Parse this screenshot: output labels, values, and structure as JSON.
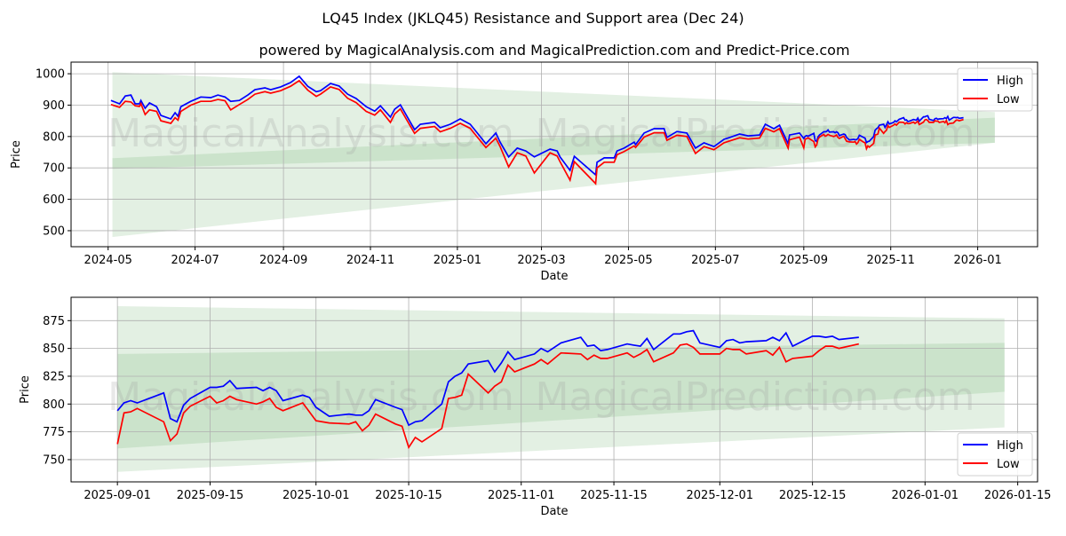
{
  "title": "LQ45 Index (JKLQ45) Resistance and Support area (Dec 24)",
  "subtitle": "powered by MagicalAnalysis.com and MagicalPrediction.com and Predict-Price.com",
  "colors": {
    "high": "#0000ff",
    "low": "#ff0000",
    "band_light": "#e3f0e3",
    "band_dark": "#cbe3cb",
    "grid": "#b0b0b0"
  },
  "chart_data": [
    {
      "type": "line",
      "xlabel": "Date",
      "ylabel": "Price",
      "x_range": [
        "2024-04-05",
        "2026-02-12"
      ],
      "ylim": [
        449,
        1037
      ],
      "grid": true,
      "legend_position": "top-right",
      "legend": [
        "High",
        "Low"
      ],
      "watermarks": [
        "MagicalAnalysis.com",
        "MagicalPrediction.com"
      ],
      "x_ticks": [
        {
          "date": "2024-05-01",
          "label": "2024-05"
        },
        {
          "date": "2024-07-01",
          "label": "2024-07"
        },
        {
          "date": "2024-09-01",
          "label": "2024-09"
        },
        {
          "date": "2024-11-01",
          "label": "2024-11"
        },
        {
          "date": "2025-01-01",
          "label": "2025-01"
        },
        {
          "date": "2025-03-01",
          "label": "2025-03"
        },
        {
          "date": "2025-05-01",
          "label": "2025-05"
        },
        {
          "date": "2025-07-01",
          "label": "2025-07"
        },
        {
          "date": "2025-09-01",
          "label": "2025-09"
        },
        {
          "date": "2025-11-01",
          "label": "2025-11"
        },
        {
          "date": "2026-01-01",
          "label": "2026-01"
        }
      ],
      "y_ticks": [
        500,
        600,
        700,
        800,
        900,
        1000
      ],
      "bands": [
        {
          "kind": "outer",
          "start": "2024-05-04",
          "end": "2026-01-13",
          "low": [
            480,
            780
          ],
          "high": [
            1005,
            878
          ]
        },
        {
          "kind": "inner",
          "start": "2024-05-04",
          "end": "2026-01-13",
          "low": [
            697,
            780
          ],
          "high": [
            731,
            860
          ]
        }
      ],
      "points": [
        [
          "2024-05-03",
          915,
          902
        ],
        [
          "2024-05-09",
          904,
          893
        ],
        [
          "2024-05-13",
          929,
          912
        ],
        [
          "2024-05-17",
          932,
          910
        ],
        [
          "2024-05-20",
          904,
          898
        ],
        [
          "2024-05-23",
          904,
          896
        ],
        [
          "2024-05-24",
          915,
          905
        ],
        [
          "2024-05-27",
          890,
          870
        ],
        [
          "2024-05-30",
          907,
          885
        ],
        [
          "2024-06-04",
          895,
          880
        ],
        [
          "2024-06-07",
          867,
          850
        ],
        [
          "2024-06-14",
          856,
          842
        ],
        [
          "2024-06-17",
          876,
          860
        ],
        [
          "2024-06-19",
          864,
          852
        ],
        [
          "2024-06-21",
          895,
          880
        ],
        [
          "2024-06-28",
          912,
          900
        ],
        [
          "2024-07-05",
          926,
          912
        ],
        [
          "2024-07-12",
          924,
          912
        ],
        [
          "2024-07-17",
          932,
          918
        ],
        [
          "2024-07-22",
          926,
          914
        ],
        [
          "2024-07-26",
          912,
          885
        ],
        [
          "2024-08-01",
          915,
          902
        ],
        [
          "2024-08-07",
          932,
          918
        ],
        [
          "2024-08-12",
          949,
          935
        ],
        [
          "2024-08-19",
          955,
          943
        ],
        [
          "2024-08-23",
          949,
          938
        ],
        [
          "2024-08-30",
          958,
          946
        ],
        [
          "2024-09-06",
          972,
          960
        ],
        [
          "2024-09-12",
          992,
          978
        ],
        [
          "2024-09-18",
          960,
          948
        ],
        [
          "2024-09-24",
          943,
          928
        ],
        [
          "2024-09-27",
          946,
          935
        ],
        [
          "2024-10-04",
          969,
          958
        ],
        [
          "2024-10-10",
          961,
          950
        ],
        [
          "2024-10-16",
          935,
          922
        ],
        [
          "2024-10-22",
          921,
          908
        ],
        [
          "2024-10-29",
          895,
          880
        ],
        [
          "2024-11-04",
          881,
          868
        ],
        [
          "2024-11-08",
          898,
          885
        ],
        [
          "2024-11-15",
          862,
          845
        ],
        [
          "2024-11-18",
          887,
          872
        ],
        [
          "2024-11-22",
          901,
          888
        ],
        [
          "2024-12-02",
          822,
          810
        ],
        [
          "2024-12-06",
          839,
          826
        ],
        [
          "2024-12-16",
          845,
          832
        ],
        [
          "2024-12-20",
          828,
          815
        ],
        [
          "2024-12-27",
          839,
          826
        ],
        [
          "2025-01-03",
          856,
          842
        ],
        [
          "2025-01-10",
          839,
          826
        ],
        [
          "2025-01-15",
          811,
          798
        ],
        [
          "2025-01-21",
          777,
          765
        ],
        [
          "2025-01-28",
          811,
          795
        ],
        [
          "2025-01-31",
          782,
          768
        ],
        [
          "2025-02-06",
          735,
          703
        ],
        [
          "2025-02-12",
          763,
          748
        ],
        [
          "2025-02-18",
          754,
          738
        ],
        [
          "2025-02-24",
          735,
          684
        ],
        [
          "2025-03-07",
          760,
          748
        ],
        [
          "2025-03-12",
          754,
          738
        ],
        [
          "2025-03-14",
          735,
          720
        ],
        [
          "2025-03-21",
          692,
          661
        ],
        [
          "2025-03-24",
          737,
          720
        ],
        [
          "2025-04-08",
          678,
          650
        ],
        [
          "2025-04-09",
          718,
          700
        ],
        [
          "2025-04-14",
          732,
          718
        ],
        [
          "2025-04-21",
          732,
          718
        ],
        [
          "2025-04-23",
          754,
          742
        ],
        [
          "2025-04-28",
          763,
          752
        ],
        [
          "2025-05-05",
          782,
          770
        ],
        [
          "2025-05-06",
          774,
          765
        ],
        [
          "2025-05-12",
          811,
          798
        ],
        [
          "2025-05-19",
          825,
          812
        ],
        [
          "2025-05-26",
          825,
          812
        ],
        [
          "2025-05-28",
          797,
          788
        ],
        [
          "2025-06-04",
          816,
          804
        ],
        [
          "2025-06-11",
          811,
          800
        ],
        [
          "2025-06-17",
          763,
          746
        ],
        [
          "2025-06-23",
          780,
          768
        ],
        [
          "2025-06-30",
          768,
          758
        ],
        [
          "2025-07-07",
          791,
          780
        ],
        [
          "2025-07-11",
          797,
          786
        ],
        [
          "2025-07-18",
          808,
          796
        ],
        [
          "2025-07-24",
          802,
          792
        ],
        [
          "2025-08-01",
          805,
          795
        ],
        [
          "2025-08-05",
          839,
          826
        ],
        [
          "2025-08-11",
          825,
          815
        ],
        [
          "2025-08-15",
          836,
          825
        ],
        [
          "2025-08-21",
          777,
          763
        ],
        [
          "2025-08-22",
          805,
          790
        ],
        [
          "2025-08-29",
          811,
          798
        ],
        [
          "2025-09-01",
          794,
          764
        ],
        [
          "2025-09-02",
          801,
          792
        ],
        [
          "2025-09-03",
          803,
          793
        ],
        [
          "2025-09-04",
          801,
          796
        ],
        [
          "2025-09-08",
          810,
          784
        ],
        [
          "2025-09-09",
          787,
          767
        ],
        [
          "2025-09-10",
          784,
          773
        ],
        [
          "2025-09-11",
          799,
          792
        ],
        [
          "2025-09-12",
          805,
          798
        ],
        [
          "2025-09-15",
          815,
          807
        ],
        [
          "2025-09-16",
          815,
          801
        ],
        [
          "2025-09-17",
          816,
          803
        ],
        [
          "2025-09-18",
          821,
          807
        ],
        [
          "2025-09-19",
          814,
          804
        ],
        [
          "2025-09-22",
          815,
          800
        ],
        [
          "2025-09-23",
          812,
          802
        ],
        [
          "2025-09-24",
          815,
          805
        ],
        [
          "2025-09-25",
          812,
          797
        ],
        [
          "2025-09-26",
          803,
          794
        ],
        [
          "2025-09-29",
          808,
          801
        ],
        [
          "2025-09-30",
          806,
          793
        ],
        [
          "2025-10-01",
          797,
          785
        ],
        [
          "2025-10-03",
          789,
          783
        ],
        [
          "2025-10-06",
          791,
          782
        ],
        [
          "2025-10-07",
          790,
          784
        ],
        [
          "2025-10-08",
          790,
          776
        ],
        [
          "2025-10-09",
          794,
          781
        ],
        [
          "2025-10-10",
          804,
          791
        ],
        [
          "2025-10-13",
          797,
          782
        ],
        [
          "2025-10-14",
          795,
          780
        ],
        [
          "2025-10-15",
          781,
          761
        ],
        [
          "2025-10-16",
          784,
          770
        ],
        [
          "2025-10-17",
          785,
          766
        ],
        [
          "2025-10-20",
          800,
          778
        ],
        [
          "2025-10-21",
          820,
          805
        ],
        [
          "2025-10-22",
          825,
          806
        ],
        [
          "2025-10-23",
          828,
          808
        ],
        [
          "2025-10-24",
          836,
          827
        ],
        [
          "2025-10-27",
          839,
          810
        ],
        [
          "2025-10-28",
          829,
          816
        ],
        [
          "2025-10-29",
          837,
          820
        ],
        [
          "2025-10-30",
          847,
          835
        ],
        [
          "2025-10-31",
          840,
          829
        ],
        [
          "2025-11-03",
          845,
          836
        ],
        [
          "2025-11-04",
          850,
          840
        ],
        [
          "2025-11-05",
          847,
          836
        ],
        [
          "2025-11-06",
          851,
          841
        ],
        [
          "2025-11-07",
          855,
          846
        ],
        [
          "2025-11-10",
          860,
          845
        ],
        [
          "2025-11-11",
          852,
          840
        ],
        [
          "2025-11-12",
          853,
          844
        ],
        [
          "2025-11-13",
          848,
          841
        ],
        [
          "2025-11-14",
          849,
          841
        ],
        [
          "2025-11-17",
          854,
          846
        ],
        [
          "2025-11-18",
          853,
          842
        ],
        [
          "2025-11-19",
          852,
          845
        ],
        [
          "2025-11-20",
          859,
          849
        ],
        [
          "2025-11-21",
          849,
          838
        ],
        [
          "2025-11-24",
          863,
          846
        ],
        [
          "2025-11-25",
          863,
          853
        ],
        [
          "2025-11-26",
          865,
          854
        ],
        [
          "2025-11-27",
          866,
          851
        ],
        [
          "2025-11-28",
          855,
          845
        ],
        [
          "2025-12-01",
          851,
          845
        ],
        [
          "2025-12-02",
          857,
          850
        ],
        [
          "2025-12-03",
          858,
          849
        ],
        [
          "2025-12-04",
          855,
          849
        ],
        [
          "2025-12-05",
          856,
          845
        ],
        [
          "2025-12-08",
          857,
          848
        ],
        [
          "2025-12-09",
          860,
          844
        ],
        [
          "2025-12-10",
          857,
          851
        ],
        [
          "2025-12-11",
          864,
          838
        ],
        [
          "2025-12-12",
          852,
          841
        ],
        [
          "2025-12-15",
          861,
          843
        ],
        [
          "2025-12-16",
          861,
          848
        ],
        [
          "2025-12-17",
          860,
          852
        ],
        [
          "2025-12-18",
          861,
          852
        ],
        [
          "2025-12-19",
          858,
          850
        ],
        [
          "2025-12-22",
          860,
          854
        ]
      ]
    },
    {
      "type": "line",
      "xlabel": "Date",
      "ylabel": "Price",
      "x_range": [
        "2025-08-25",
        "2026-01-18"
      ],
      "ylim": [
        730,
        896
      ],
      "grid": true,
      "legend_position": "bottom-right",
      "legend": [
        "High",
        "Low"
      ],
      "watermarks": [
        "MagicalAnalysis.com",
        "MagicalPrediction.com"
      ],
      "series_from": "2025-09-01",
      "x_ticks": [
        {
          "date": "2025-09-01",
          "label": "2025-09-01"
        },
        {
          "date": "2025-09-15",
          "label": "2025-09-15"
        },
        {
          "date": "2025-10-01",
          "label": "2025-10-01"
        },
        {
          "date": "2025-10-15",
          "label": "2025-10-15"
        },
        {
          "date": "2025-11-01",
          "label": "2025-11-01"
        },
        {
          "date": "2025-11-15",
          "label": "2025-11-15"
        },
        {
          "date": "2025-12-01",
          "label": "2025-12-01"
        },
        {
          "date": "2025-12-15",
          "label": "2025-12-15"
        },
        {
          "date": "2026-01-01",
          "label": "2026-01-01"
        },
        {
          "date": "2026-01-15",
          "label": "2026-01-15"
        }
      ],
      "y_ticks": [
        750,
        775,
        800,
        825,
        850,
        875
      ],
      "bands": [
        {
          "kind": "outer",
          "start": "2025-09-01",
          "end": "2026-01-13",
          "low": [
            739,
            779
          ],
          "high": [
            888,
            877
          ]
        },
        {
          "kind": "inner",
          "start": "2025-09-01",
          "end": "2026-01-13",
          "low": [
            760,
            811
          ],
          "high": [
            845,
            855
          ]
        }
      ]
    }
  ]
}
